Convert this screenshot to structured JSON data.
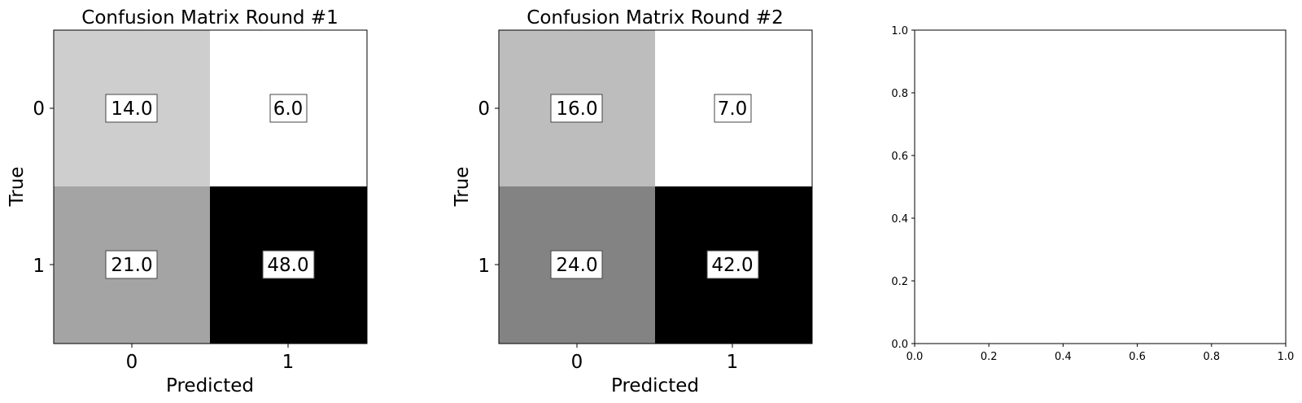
{
  "chart_data": [
    {
      "type": "heatmap",
      "title": "Confusion Matrix Round #1",
      "xlabel": "Predicted",
      "ylabel": "True",
      "x_categories": [
        "0",
        "1"
      ],
      "y_categories": [
        "0",
        "1"
      ],
      "values": [
        [
          14.0,
          6.0
        ],
        [
          21.0,
          48.0
        ]
      ],
      "value_labels": [
        [
          "14.0",
          "6.0"
        ],
        [
          "21.0",
          "48.0"
        ]
      ],
      "colormap": "gray_r"
    },
    {
      "type": "heatmap",
      "title": "Confusion Matrix Round #2",
      "xlabel": "Predicted",
      "ylabel": "True",
      "x_categories": [
        "0",
        "1"
      ],
      "y_categories": [
        "0",
        "1"
      ],
      "values": [
        [
          16.0,
          7.0
        ],
        [
          24.0,
          42.0
        ]
      ],
      "value_labels": [
        [
          "16.0",
          "7.0"
        ],
        [
          "24.0",
          "42.0"
        ]
      ],
      "colormap": "gray_r"
    },
    {
      "type": "scatter",
      "title": "",
      "xlabel": "",
      "ylabel": "",
      "xlim": [
        0.0,
        1.0
      ],
      "ylim": [
        0.0,
        1.0
      ],
      "x_ticks": [
        "0.0",
        "0.2",
        "0.4",
        "0.6",
        "0.8",
        "1.0"
      ],
      "y_ticks": [
        "0.0",
        "0.2",
        "0.4",
        "0.6",
        "0.8",
        "1.0"
      ],
      "series": []
    }
  ]
}
